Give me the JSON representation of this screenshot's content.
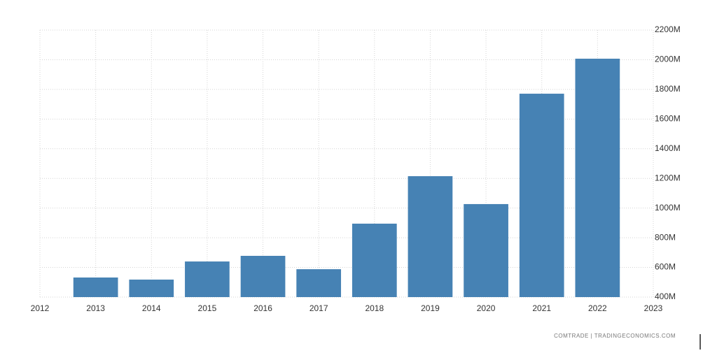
{
  "chart_data": {
    "type": "bar",
    "x": [
      2013,
      2014,
      2015,
      2016,
      2017,
      2018,
      2019,
      2020,
      2021,
      2022
    ],
    "values": [
      532,
      518,
      640,
      678,
      588,
      895,
      1215,
      1027,
      1771,
      2007
    ],
    "color": "#4682b4",
    "xlim": [
      2012,
      2023
    ],
    "xticks": [
      2012,
      2013,
      2014,
      2015,
      2016,
      2017,
      2018,
      2019,
      2020,
      2021,
      2022,
      2023
    ],
    "ylim": [
      400,
      2200
    ],
    "yticks": [
      {
        "value": 400,
        "label": "400M"
      },
      {
        "value": 600,
        "label": "600M"
      },
      {
        "value": 800,
        "label": "800M"
      },
      {
        "value": 1000,
        "label": "1000M"
      },
      {
        "value": 1200,
        "label": "1200M"
      },
      {
        "value": 1400,
        "label": "1400M"
      },
      {
        "value": 1600,
        "label": "1600M"
      },
      {
        "value": 1800,
        "label": "1800M"
      },
      {
        "value": 2000,
        "label": "2000M"
      },
      {
        "value": 2200,
        "label": "2200M"
      }
    ],
    "grid": true,
    "source": "COMTRADE | TRADINGECONOMICS.COM"
  }
}
